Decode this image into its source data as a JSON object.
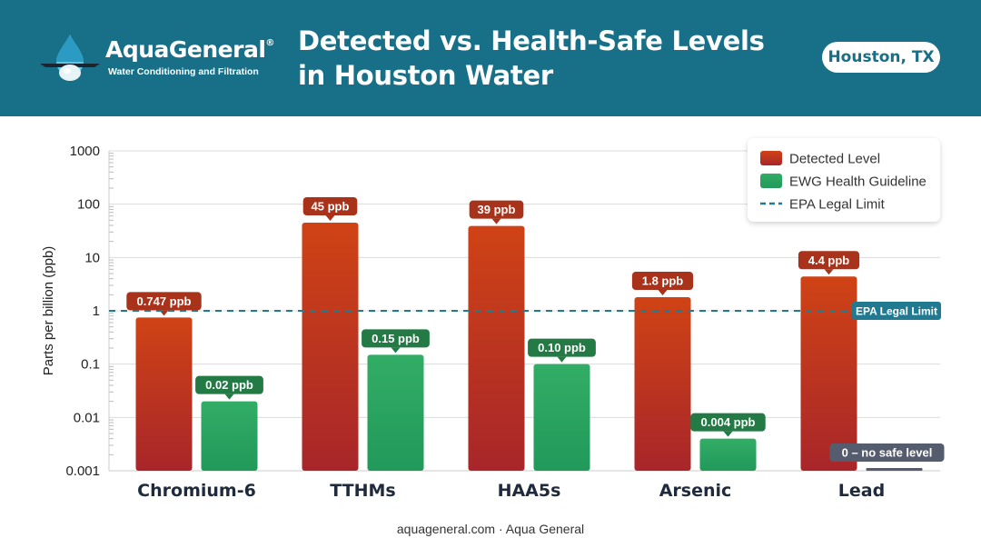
{
  "header": {
    "brand_name": "AquaGeneral",
    "brand_mark": "®",
    "tagline": "Water Conditioning and Filtration",
    "title_line1": "Detected vs. Health-Safe Levels",
    "title_line2": "in Houston Water",
    "location": "Houston, TX"
  },
  "footer": {
    "text": "aquageneral.com · Aqua General"
  },
  "colors": {
    "header_bg": "#176f88",
    "detected": "#c13a1b",
    "guideline": "#2aa45e",
    "epa_line": "#1f7a92",
    "no_safe_label": "#555c6e"
  },
  "icons": {
    "logo": "water-drop-icon"
  },
  "chart_data": {
    "type": "bar",
    "y_scale": "log",
    "ylim": [
      0.001,
      1000
    ],
    "ylabel": "Parts per billion (ppb)",
    "xlabel": "",
    "y_ticks": [
      {
        "value": 1000,
        "label": "1000"
      },
      {
        "value": 100,
        "label": "100"
      },
      {
        "value": 10,
        "label": "10"
      },
      {
        "value": 1,
        "label": "1"
      },
      {
        "value": 0.1,
        "label": "0.1"
      },
      {
        "value": 0.01,
        "label": "0.01"
      },
      {
        "value": 0.001,
        "label": "0.001"
      }
    ],
    "grid": true,
    "legend_position": "top-right",
    "categories": [
      "Chromium-6",
      "TTHMs",
      "HAA5s",
      "Arsenic",
      "Lead"
    ],
    "series": [
      {
        "name": "Detected Level",
        "values": [
          0.747,
          45,
          39,
          1.8,
          4.4
        ],
        "labels": [
          "0.747 ppb",
          "45 ppb",
          "39 ppb",
          "1.8 ppb",
          "4.4 ppb"
        ]
      },
      {
        "name": "EWG Health Guideline",
        "values": [
          0.02,
          0.15,
          0.1,
          0.004,
          0
        ],
        "labels": [
          "0.02 ppb",
          "0.15 ppb",
          "0.10 ppb",
          "0.004 ppb",
          "0 – no safe level"
        ]
      }
    ],
    "reference_line": {
      "name": "EPA Legal Limit",
      "value": 1,
      "label": "EPA Legal Limit",
      "style": "dashed"
    }
  }
}
